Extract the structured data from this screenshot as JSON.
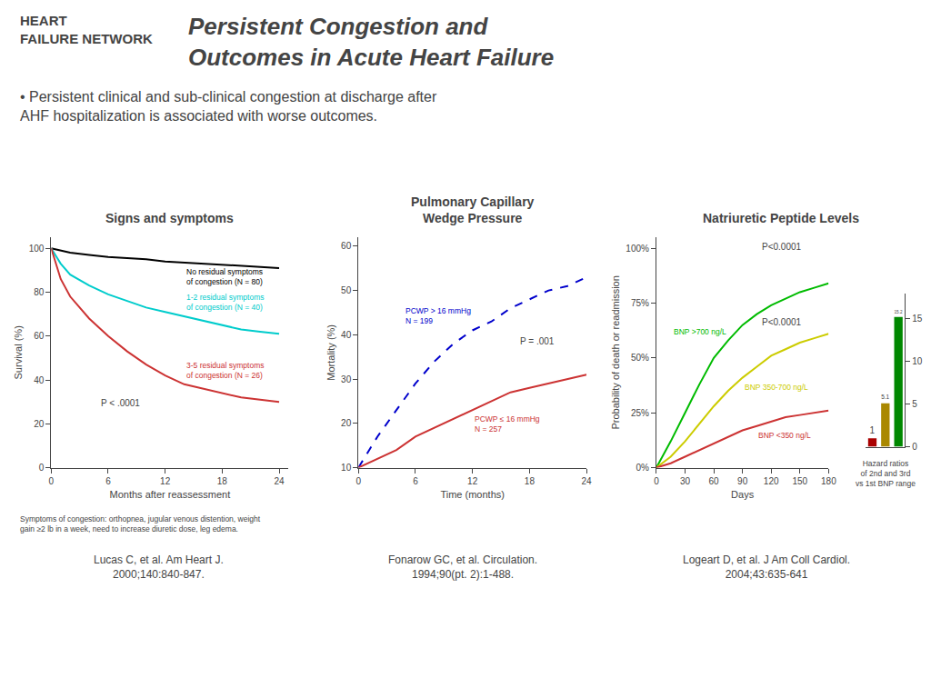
{
  "title": "Persistent Congestion and\nOutcomes in Acute Heart Failure",
  "subtitle": "• Persistent clinical and sub-clinical congestion at discharge after\nAHF hospitalization is associated with worse outcomes.",
  "annotations": [
    "HEART\nFAILURE NETWORK",
    "Lucas C, et al. Am Heart J.\n2000;140:840-847.",
    "Fonarow GC, et al. Circulation.\n1994;90(pt. 2):1-488.",
    "Logeart D, et al. J Am Coll Cardiol.\n2004;43:635-641"
  ],
  "chart_data": [
    {
      "type": "line",
      "title": "Signs and symptoms",
      "xlabel": "Months after reassessment",
      "ylabel": "Survival (%)",
      "xlim": [
        0,
        25
      ],
      "ylim": [
        0,
        105
      ],
      "xticks": [
        0,
        6,
        12,
        18,
        24
      ],
      "yticks": [
        0,
        20,
        40,
        60,
        80,
        100
      ],
      "grid": false,
      "series": [
        {
          "name": "No residual symptoms\nof congestion (N = 80)",
          "color": "#000000",
          "line_style": "solid",
          "x": [
            0,
            1,
            2,
            4,
            6,
            8,
            10,
            12,
            14,
            16,
            18,
            20,
            22,
            24
          ],
          "values": [
            100,
            99,
            98,
            97,
            96,
            95.5,
            95,
            94,
            93.5,
            93,
            92.5,
            92,
            91.5,
            91
          ]
        },
        {
          "name": "1-2 residual symptoms\nof congestion (N = 40)",
          "color": "#00cccc",
          "line_style": "solid",
          "x": [
            0,
            1,
            2,
            4,
            6,
            8,
            10,
            12,
            14,
            16,
            18,
            20,
            22,
            24
          ],
          "values": [
            100,
            93,
            88,
            83,
            79,
            76,
            73,
            71,
            69,
            67,
            65,
            63,
            62,
            61
          ]
        },
        {
          "name": "3-5 residual symptoms\nof congestion (N = 26)",
          "color": "#cc3333",
          "line_style": "solid",
          "x": [
            0,
            1,
            2,
            4,
            6,
            8,
            10,
            12,
            14,
            16,
            18,
            20,
            22,
            24
          ],
          "values": [
            100,
            86,
            78,
            68,
            60,
            53,
            47,
            42,
            38,
            36,
            34,
            32,
            31,
            30
          ]
        }
      ],
      "annotations": [
        "P < .0001",
        "Symptoms of congestion: orthopnea, jugular venous distention, weight\ngain ≥2 lb in a week, need to increase diuretic dose, leg edema."
      ]
    },
    {
      "type": "line",
      "title": "Pulmonary Capillary\nWedge Pressure",
      "xlabel": "Time (months)",
      "ylabel": "Mortality (%)",
      "xlim": [
        0,
        24
      ],
      "ylim": [
        10,
        62
      ],
      "xticks": [
        0,
        6,
        12,
        18,
        24
      ],
      "yticks": [
        10,
        20,
        30,
        40,
        50,
        60
      ],
      "grid": false,
      "series": [
        {
          "name": "PCWP > 16 mmHg\nN = 199",
          "color": "#0000cc",
          "line_style": "dashed",
          "x": [
            0,
            2,
            4,
            6,
            8,
            10,
            12,
            14,
            16,
            18,
            20,
            22,
            24
          ],
          "values": [
            10,
            17,
            23,
            29,
            34,
            38,
            41,
            43,
            46,
            48,
            50,
            51,
            53
          ]
        },
        {
          "name": "PCWP ≤ 16 mmHg\nN = 257",
          "color": "#cc3333",
          "line_style": "solid",
          "x": [
            0,
            2,
            4,
            6,
            8,
            10,
            12,
            14,
            16,
            18,
            20,
            22,
            24
          ],
          "values": [
            10,
            12,
            14,
            17,
            19,
            21,
            23,
            25,
            27,
            28,
            29,
            30,
            31
          ]
        }
      ],
      "annotations": [
        "P = .001"
      ]
    },
    {
      "type": "line",
      "title": "Natriuretic Peptide Levels",
      "xlabel": "Days",
      "ylabel": "Probability of death or readmission",
      "xlim": [
        0,
        180
      ],
      "ylim": [
        0,
        105
      ],
      "xticks": [
        0,
        30,
        60,
        90,
        120,
        150,
        180
      ],
      "yticks": [
        {
          "value": 0,
          "label": "0%"
        },
        {
          "value": 25,
          "label": "25%"
        },
        {
          "value": 50,
          "label": "50%"
        },
        {
          "value": 75,
          "label": "75%"
        },
        {
          "value": 100,
          "label": "100%"
        }
      ],
      "grid": false,
      "series": [
        {
          "name": "BNP >700 ng/L",
          "color": "#00bb00",
          "line_style": "solid",
          "x": [
            0,
            15,
            30,
            45,
            60,
            75,
            90,
            105,
            120,
            135,
            150,
            165,
            180
          ],
          "values": [
            0,
            12,
            25,
            38,
            50,
            58,
            65,
            70,
            74,
            77,
            80,
            82,
            84
          ]
        },
        {
          "name": "BNP 350-700 ng/L",
          "color": "#cccc00",
          "line_style": "solid",
          "x": [
            0,
            15,
            30,
            45,
            60,
            75,
            90,
            105,
            120,
            135,
            150,
            165,
            180
          ],
          "values": [
            0,
            5,
            12,
            20,
            28,
            35,
            41,
            46,
            51,
            54,
            57,
            59,
            61
          ]
        },
        {
          "name": "BNP <350 ng/L",
          "color": "#cc3333",
          "line_style": "solid",
          "x": [
            0,
            15,
            30,
            45,
            60,
            75,
            90,
            105,
            120,
            135,
            150,
            165,
            180
          ],
          "values": [
            0,
            2,
            5,
            8,
            11,
            14,
            17,
            19,
            21,
            23,
            24,
            25,
            26
          ]
        }
      ],
      "annotations": [
        "P<0.0001",
        "P<0.0001"
      ]
    },
    {
      "type": "bar",
      "categories": [
        null,
        null,
        null
      ],
      "values": [
        1,
        5.1,
        15.2
      ],
      "colors": [
        "#aa0000",
        "#aa8800",
        "#008800"
      ],
      "ylim": [
        0,
        18
      ],
      "yticks": [
        0,
        5,
        10,
        15
      ],
      "grid": false,
      "data_labels": true,
      "tick_labels": "y",
      "annotations": [
        "Hazard ratios\nof 2nd and 3rd\nvs 1st BNP range"
      ]
    }
  ]
}
